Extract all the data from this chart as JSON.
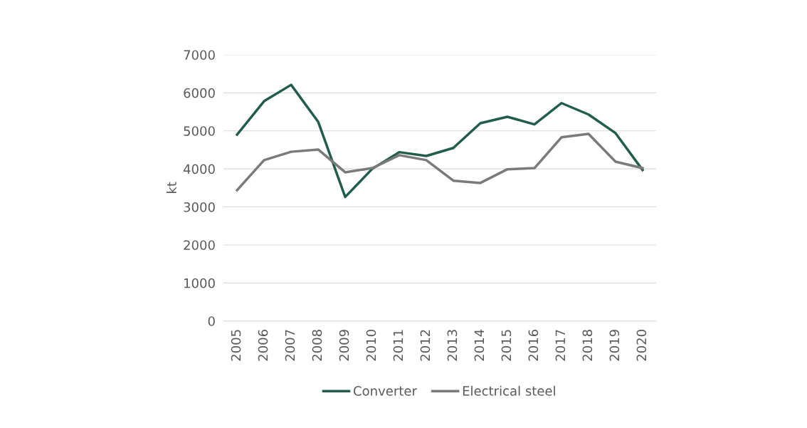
{
  "chart_data": {
    "type": "line",
    "ylabel": "kt",
    "categories": [
      "2005",
      "2006",
      "2007",
      "2008",
      "2009",
      "2010",
      "2011",
      "2012",
      "2013",
      "2014",
      "2015",
      "2016",
      "2017",
      "2018",
      "2019",
      "2020"
    ],
    "series": [
      {
        "name": "Converter",
        "color": "#215c4c",
        "values": [
          4900,
          5780,
          6210,
          5240,
          3260,
          4000,
          4440,
          4340,
          4550,
          5200,
          5370,
          5170,
          5730,
          5430,
          4940,
          3970
        ]
      },
      {
        "name": "Electrical steel",
        "color": "#7a7a7a",
        "values": [
          3440,
          4230,
          4450,
          4510,
          3910,
          4020,
          4360,
          4230,
          3690,
          3630,
          3990,
          4020,
          4830,
          4920,
          4190,
          4020
        ]
      }
    ],
    "ylim": [
      0,
      7000
    ],
    "yticks": [
      0,
      1000,
      2000,
      3000,
      4000,
      5000,
      6000,
      7000
    ],
    "grid": "y",
    "legend": "bottom",
    "marker": "none",
    "line_style": "solid"
  }
}
